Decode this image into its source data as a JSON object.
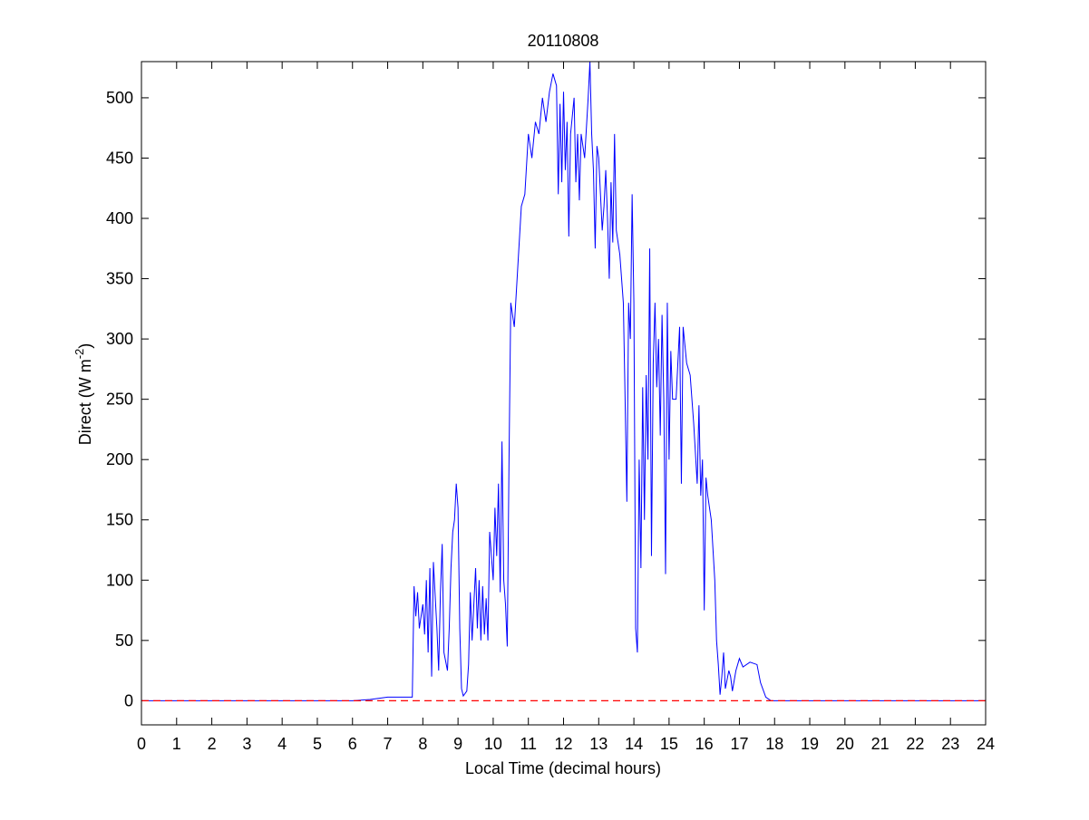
{
  "chart_data": {
    "type": "line",
    "title": "20110808",
    "xlabel": "Local Time (decimal hours)",
    "ylabel": {
      "text": "Direct (W m",
      "superscript": "-2",
      "suffix": ")"
    },
    "x": [
      0,
      1,
      2,
      3,
      4,
      5,
      6,
      6.5,
      7,
      7.5,
      7.7,
      7.75,
      7.8,
      7.85,
      7.9,
      8.0,
      8.05,
      8.1,
      8.15,
      8.2,
      8.25,
      8.3,
      8.4,
      8.45,
      8.5,
      8.55,
      8.6,
      8.7,
      8.75,
      8.8,
      8.85,
      8.9,
      8.95,
      9.0,
      9.05,
      9.1,
      9.15,
      9.25,
      9.3,
      9.35,
      9.4,
      9.5,
      9.55,
      9.6,
      9.65,
      9.7,
      9.75,
      9.8,
      9.85,
      9.9,
      10.0,
      10.05,
      10.1,
      10.15,
      10.2,
      10.25,
      10.3,
      10.35,
      10.4,
      10.45,
      10.5,
      10.6,
      10.7,
      10.8,
      10.9,
      11.0,
      11.1,
      11.2,
      11.3,
      11.4,
      11.5,
      11.6,
      11.7,
      11.8,
      11.85,
      11.9,
      11.95,
      12.0,
      12.05,
      12.1,
      12.15,
      12.2,
      12.3,
      12.35,
      12.4,
      12.45,
      12.5,
      12.6,
      12.7,
      12.75,
      12.8,
      12.85,
      12.9,
      12.95,
      13.0,
      13.05,
      13.1,
      13.15,
      13.2,
      13.25,
      13.3,
      13.35,
      13.4,
      13.45,
      13.5,
      13.6,
      13.7,
      13.75,
      13.8,
      13.85,
      13.9,
      13.95,
      14.0,
      14.05,
      14.1,
      14.15,
      14.2,
      14.25,
      14.3,
      14.35,
      14.4,
      14.45,
      14.5,
      14.55,
      14.6,
      14.65,
      14.7,
      14.75,
      14.8,
      14.85,
      14.9,
      14.95,
      15.0,
      15.05,
      15.1,
      15.2,
      15.3,
      15.35,
      15.4,
      15.5,
      15.6,
      15.7,
      15.8,
      15.85,
      15.9,
      15.95,
      16.0,
      16.05,
      16.1,
      16.2,
      16.3,
      16.35,
      16.4,
      16.45,
      16.5,
      16.55,
      16.6,
      16.7,
      16.75,
      16.8,
      16.9,
      17.0,
      17.1,
      17.3,
      17.5,
      17.6,
      17.75,
      17.9,
      18,
      19,
      20,
      21,
      22,
      23,
      24
    ],
    "values": [
      0,
      0,
      0,
      0,
      0,
      0,
      0,
      1,
      3,
      3,
      3,
      95,
      70,
      90,
      60,
      80,
      55,
      100,
      40,
      110,
      20,
      115,
      60,
      25,
      90,
      130,
      40,
      25,
      60,
      110,
      140,
      150,
      180,
      160,
      60,
      10,
      4,
      8,
      30,
      90,
      50,
      110,
      60,
      100,
      50,
      95,
      55,
      85,
      50,
      140,
      100,
      160,
      120,
      180,
      90,
      215,
      100,
      80,
      45,
      200,
      330,
      310,
      360,
      410,
      420,
      470,
      450,
      480,
      470,
      500,
      480,
      505,
      520,
      510,
      420,
      495,
      430,
      505,
      440,
      480,
      385,
      470,
      500,
      430,
      470,
      415,
      470,
      450,
      500,
      530,
      470,
      440,
      375,
      460,
      450,
      420,
      390,
      410,
      440,
      400,
      350,
      430,
      380,
      470,
      390,
      370,
      330,
      250,
      165,
      330,
      300,
      420,
      330,
      60,
      40,
      200,
      110,
      260,
      150,
      270,
      200,
      375,
      120,
      280,
      330,
      260,
      300,
      220,
      320,
      250,
      105,
      330,
      200,
      290,
      250,
      250,
      310,
      180,
      310,
      280,
      270,
      230,
      180,
      245,
      170,
      200,
      75,
      185,
      170,
      150,
      100,
      50,
      30,
      5,
      20,
      40,
      10,
      25,
      20,
      8,
      25,
      35,
      28,
      32,
      30,
      15,
      3,
      0,
      0,
      0,
      0,
      0,
      0,
      0,
      0
    ],
    "color": "#0000ff",
    "reference_line": {
      "value": 0,
      "color": "#ff0000",
      "style": "dashed"
    },
    "xlim": [
      0,
      24
    ],
    "xticks": [
      0,
      1,
      2,
      3,
      4,
      5,
      6,
      7,
      8,
      9,
      10,
      11,
      12,
      13,
      14,
      15,
      16,
      17,
      18,
      19,
      20,
      21,
      22,
      23,
      24
    ],
    "ylim": [
      -20,
      530
    ],
    "yticks": [
      0,
      50,
      100,
      150,
      200,
      250,
      300,
      350,
      400,
      450,
      500
    ]
  }
}
